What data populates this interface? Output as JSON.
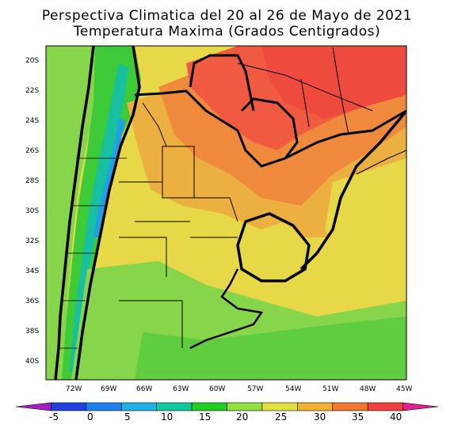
{
  "title_line1": "Perspectiva Climatica del 20 al 26 de Mayo de 2021",
  "title_line2": "Temperatura Maxima (Grados Centigrados)",
  "lat_labels": [
    "20S",
    "22S",
    "24S",
    "26S",
    "28S",
    "30S",
    "32S",
    "34S",
    "36S",
    "38S",
    "40S"
  ],
  "lon_labels": [
    "72W",
    "69W",
    "66W",
    "63W",
    "60W",
    "57W",
    "54W",
    "51W",
    "48W",
    "45W"
  ],
  "colorbar": {
    "ticks": [
      "-5",
      "0",
      "5",
      "10",
      "15",
      "20",
      "25",
      "30",
      "35",
      "40"
    ],
    "colors": [
      "#a020c0",
      "#2040e0",
      "#2080f0",
      "#20b0e8",
      "#10c8a0",
      "#20d020",
      "#90e040",
      "#e0e040",
      "#f0b030",
      "#f07830",
      "#f04040",
      "#e02090"
    ]
  },
  "map_colors": {
    "warm_25_30": "#e8d848",
    "hot_30_35": "#ecb040",
    "hot_35_40": "#ef8a3c",
    "very_hot": "#f05a40",
    "mild_20_25": "#8ad848",
    "cool_15_20": "#50d040",
    "cold_10_15": "#20c880",
    "colder": "#20a8e8"
  }
}
